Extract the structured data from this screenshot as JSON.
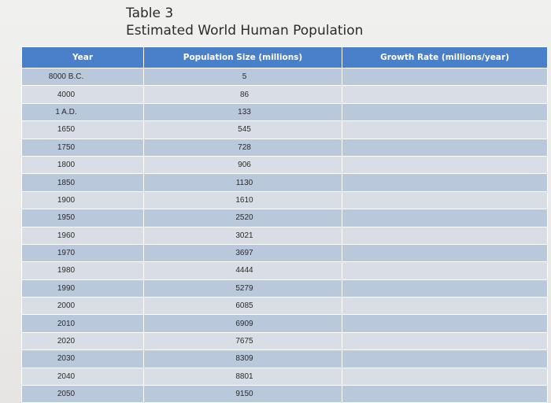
{
  "title": {
    "line1": "Table 3",
    "line2": "Estimated World Human Population"
  },
  "table": {
    "headers": {
      "year": "Year",
      "population": "Population Size (millions)",
      "growth": "Growth Rate (millions/year)"
    },
    "rows": [
      {
        "year": "8000 B.C.",
        "population": "5",
        "growth": ""
      },
      {
        "year": "4000",
        "population": "86",
        "growth": ""
      },
      {
        "year": "1 A.D.",
        "population": "133",
        "growth": ""
      },
      {
        "year": "1650",
        "population": "545",
        "growth": ""
      },
      {
        "year": "1750",
        "population": "728",
        "growth": ""
      },
      {
        "year": "1800",
        "population": "906",
        "growth": ""
      },
      {
        "year": "1850",
        "population": "1130",
        "growth": ""
      },
      {
        "year": "1900",
        "population": "1610",
        "growth": ""
      },
      {
        "year": "1950",
        "population": "2520",
        "growth": ""
      },
      {
        "year": "1960",
        "population": "3021",
        "growth": ""
      },
      {
        "year": "1970",
        "population": "3697",
        "growth": ""
      },
      {
        "year": "1980",
        "population": "4444",
        "growth": ""
      },
      {
        "year": "1990",
        "population": "5279",
        "growth": ""
      },
      {
        "year": "2000",
        "population": "6085",
        "growth": ""
      },
      {
        "year": "2010",
        "population": "6909",
        "growth": ""
      },
      {
        "year": "2020",
        "population": "7675",
        "growth": ""
      },
      {
        "year": "2030",
        "population": "8309",
        "growth": ""
      },
      {
        "year": "2040",
        "population": "8801",
        "growth": ""
      },
      {
        "year": "2050",
        "population": "9150",
        "growth": ""
      }
    ]
  },
  "colors": {
    "header_bg": "#4a80c9",
    "row_odd": "#bac8dc",
    "row_even": "#d9dee6",
    "page_bg": "#eeeeec"
  }
}
